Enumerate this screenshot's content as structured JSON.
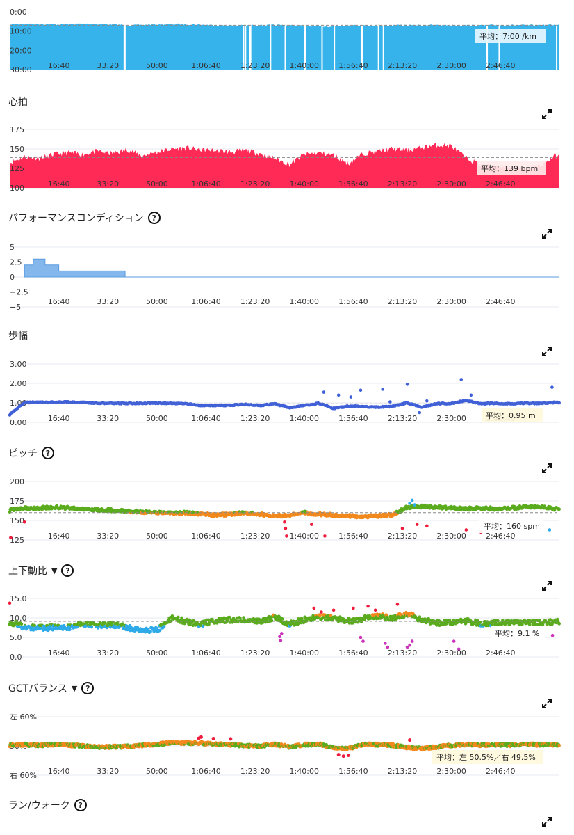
{
  "sections": [
    {
      "id": "pace",
      "title": "",
      "help": false,
      "dropdown": false,
      "expand": false,
      "avg_label": "平均：7:00 /km"
    },
    {
      "id": "hr",
      "title": "心拍",
      "help": false,
      "dropdown": false,
      "expand": true,
      "avg_label": "平均：139 bpm"
    },
    {
      "id": "perf",
      "title": "パフォーマンスコンディション",
      "help": true,
      "dropdown": false,
      "expand": true,
      "avg_label": ""
    },
    {
      "id": "stride",
      "title": "歩幅",
      "help": false,
      "dropdown": false,
      "expand": true,
      "avg_label": "平均：0.95 m"
    },
    {
      "id": "pitch",
      "title": "ピッチ",
      "help": true,
      "dropdown": false,
      "expand": true,
      "avg_label": "平均：160 spm"
    },
    {
      "id": "vratio",
      "title": "上下動比",
      "help": true,
      "dropdown": true,
      "expand": true,
      "avg_label": "平均：9.1 %"
    },
    {
      "id": "gct",
      "title": "GCTバランス",
      "help": true,
      "dropdown": true,
      "expand": true,
      "avg_label": "平均：左 50.5%／右 49.5%"
    },
    {
      "id": "runwalk",
      "title": "ラン/ウォーク",
      "help": true,
      "dropdown": false,
      "expand": true,
      "avg_label": ""
    }
  ],
  "icons": {
    "help": "?",
    "dropdown": "▼",
    "expand": "expand-icon"
  },
  "colors": {
    "pace": "#36b3ea",
    "hr": "#ff2a55",
    "perf": "#84b8ec",
    "perf_line": "#5a9be0",
    "stride": "#4060d8",
    "green": "#5aab1e",
    "orange": "#f2891c",
    "red": "#ee1c3c",
    "blue": "#2eaae8",
    "purple": "#cc33bb",
    "grid": "#e6e8ef",
    "avg_line": "#888888"
  },
  "chart_data": [
    {
      "id": "pace",
      "type": "area",
      "ylim": [
        0,
        30
      ],
      "y_inverted": true,
      "yticks": [
        "0:00",
        "10:00",
        "20:00",
        "30:00"
      ],
      "xticks": [
        "16:40",
        "33:20",
        "50:00",
        "1:06:40",
        "1:23:20",
        "1:40:00",
        "1:56:40",
        "2:13:20",
        "2:30:00",
        "2:46:40"
      ],
      "x_seconds": [
        0,
        500,
        1000,
        1500,
        2000,
        2500,
        3000,
        3500,
        4000,
        4500,
        5000,
        5500,
        6000,
        6500,
        7000,
        7500,
        8000,
        8500,
        9000,
        9500,
        10000,
        10500,
        11000
      ],
      "values": [
        6.5,
        6.3,
        6.6,
        6.2,
        6.5,
        7.0,
        6.6,
        6.4,
        6.8,
        7.2,
        7.0,
        6.9,
        7.3,
        7.6,
        7.1,
        7.2,
        7.0,
        6.9,
        7.0,
        7.1,
        6.9,
        7.0,
        6.8
      ],
      "average": 7.0
    },
    {
      "id": "hr",
      "type": "area",
      "ylim": [
        100,
        175
      ],
      "yticks": [
        "175",
        "150",
        "125",
        "100"
      ],
      "xticks": [
        "16:40",
        "33:20",
        "50:00",
        "1:06:40",
        "1:23:20",
        "1:40:00",
        "1:56:40",
        "2:13:20",
        "2:30:00",
        "2:46:40"
      ],
      "x_seconds": [
        0,
        300,
        600,
        900,
        1200,
        1500,
        1800,
        2100,
        2400,
        2700,
        3000,
        3300,
        3600,
        3900,
        4200,
        4500,
        4800,
        5100,
        5400,
        5700,
        6000,
        6300,
        6600,
        6900,
        7200,
        7500,
        7800,
        8100,
        8400,
        8700,
        9000,
        9300,
        9600,
        9900,
        10200,
        10500,
        10800,
        11100
      ],
      "values": [
        132,
        140,
        138,
        143,
        145,
        143,
        147,
        144,
        149,
        141,
        146,
        150,
        151,
        149,
        148,
        146,
        148,
        144,
        138,
        130,
        143,
        145,
        142,
        131,
        144,
        147,
        150,
        148,
        152,
        155,
        154,
        138,
        130,
        128,
        126,
        124,
        128,
        141
      ],
      "average": 139
    },
    {
      "id": "perf",
      "type": "area",
      "ylim": [
        -5,
        5
      ],
      "yticks": [
        "5",
        "2.5",
        "0",
        "−2.5",
        "−5"
      ],
      "xticks": [
        "16:40",
        "33:20",
        "50:00",
        "1:06:40",
        "1:23:20",
        "1:40:00",
        "1:56:40",
        "2:13:20",
        "2:30:00",
        "2:46:40"
      ],
      "x_seconds": [
        300,
        480,
        720,
        1000,
        1420,
        2350,
        2351,
        11200
      ],
      "values": [
        2,
        3,
        2,
        1,
        1,
        1,
        0,
        0
      ]
    },
    {
      "id": "stride",
      "type": "scatter",
      "ylim": [
        0,
        3
      ],
      "yticks": [
        "3.00",
        "2.00",
        "1.00",
        "0.00"
      ],
      "xticks": [
        "16:40",
        "33:20",
        "50:00",
        "1:06:40",
        "1:23:20",
        "1:40:00",
        "1:56:40",
        "2:13:20",
        "2:30:00",
        "2:46:40"
      ],
      "x_seconds": [
        0,
        300,
        600,
        900,
        1200,
        1500,
        1800,
        2100,
        2400,
        2700,
        3000,
        3300,
        3600,
        3900,
        4200,
        4500,
        4800,
        5100,
        5400,
        5700,
        6000,
        6300,
        6600,
        6900,
        7200,
        7500,
        7800,
        8100,
        8400,
        8700,
        9000,
        9300,
        9600,
        9900,
        10200,
        10500,
        10800,
        11100
      ],
      "values": [
        0.4,
        1.02,
        1.03,
        1.03,
        1.04,
        1.02,
        0.98,
        0.97,
        0.97,
        0.98,
        0.99,
        0.98,
        0.96,
        0.85,
        0.86,
        0.88,
        0.92,
        0.86,
        0.95,
        0.75,
        0.86,
        0.98,
        0.72,
        0.83,
        0.81,
        0.78,
        0.82,
        1.0,
        0.78,
        0.96,
        0.97,
        1.12,
        0.96,
        0.98,
        0.95,
        0.98,
        0.97,
        1.02
      ],
      "average": 0.95
    },
    {
      "id": "pitch",
      "type": "scatter",
      "ylim": [
        125,
        200
      ],
      "yticks": [
        "200",
        "175",
        "150",
        "125"
      ],
      "xticks": [
        "16:40",
        "33:20",
        "50:00",
        "1:06:40",
        "1:23:20",
        "1:40:00",
        "1:56:40",
        "2:13:20",
        "2:30:00",
        "2:46:40"
      ],
      "x_seconds": [
        0,
        300,
        600,
        900,
        1200,
        1500,
        1800,
        2100,
        2400,
        2700,
        3000,
        3300,
        3600,
        3900,
        4200,
        4500,
        4800,
        5100,
        5400,
        5700,
        6000,
        6300,
        6600,
        6900,
        7200,
        7500,
        7800,
        8100,
        8400,
        8700,
        9000,
        9300,
        9600,
        9900,
        10200,
        10500,
        10800,
        11100
      ],
      "values": [
        163,
        166,
        166,
        167,
        166,
        165,
        164,
        163,
        162,
        161,
        160,
        159,
        160,
        158,
        157,
        158,
        160,
        158,
        156,
        157,
        160,
        158,
        157,
        156,
        155,
        156,
        157,
        167,
        168,
        167,
        166,
        165,
        166,
        165,
        166,
        167,
        168,
        165
      ],
      "average": 160
    },
    {
      "id": "vratio",
      "type": "scatter",
      "ylim": [
        0,
        15
      ],
      "yticks": [
        "15.0",
        "10.0",
        "5.0",
        "0.0"
      ],
      "xticks": [
        "16:40",
        "33:20",
        "50:00",
        "1:06:40",
        "1:23:20",
        "1:40:00",
        "1:56:40",
        "2:13:20",
        "2:30:00",
        "2:46:40"
      ],
      "x_seconds": [
        0,
        300,
        600,
        900,
        1200,
        1500,
        1800,
        2100,
        2400,
        2700,
        3000,
        3300,
        3600,
        3900,
        4200,
        4500,
        4800,
        5100,
        5400,
        5700,
        6000,
        6300,
        6600,
        6900,
        7200,
        7500,
        7800,
        8100,
        8400,
        8700,
        9000,
        9300,
        9600,
        9900,
        10200,
        10500,
        10800,
        11100
      ],
      "values": [
        9.0,
        7.6,
        7.5,
        7.5,
        7.6,
        8.5,
        8.0,
        8.3,
        7.5,
        6.8,
        6.8,
        10.0,
        9.0,
        8.5,
        9.2,
        9.5,
        9.5,
        9.0,
        10.2,
        8.5,
        9.5,
        10.2,
        10.0,
        9.2,
        9.7,
        10.5,
        10.0,
        11.0,
        9.5,
        8.7,
        8.8,
        9.2,
        8.6,
        8.7,
        8.7,
        8.9,
        8.7,
        9.0
      ],
      "average": 9.1
    },
    {
      "id": "gct",
      "type": "scatter",
      "ylim": [
        -10,
        10
      ],
      "yticks": [
        "左 60%",
        "50%",
        "右 60%"
      ],
      "xticks": [
        "16:40",
        "33:20",
        "50:00",
        "1:06:40",
        "1:23:20",
        "1:40:00",
        "1:56:40",
        "2:13:20",
        "2:30:00",
        "2:46:40"
      ],
      "x_seconds": [
        0,
        300,
        600,
        900,
        1200,
        1500,
        1800,
        2100,
        2400,
        2700,
        3000,
        3300,
        3600,
        3900,
        4200,
        4500,
        4800,
        5100,
        5400,
        5700,
        6000,
        6300,
        6600,
        6900,
        7200,
        7500,
        7800,
        8100,
        8400,
        8700,
        9000,
        9300,
        9600,
        9900,
        10200,
        10500,
        10800,
        11100
      ],
      "values": [
        0.3,
        0.4,
        0.2,
        0.5,
        0.3,
        0.0,
        -0.4,
        -0.3,
        -0.2,
        0.2,
        0.6,
        1.1,
        1.0,
        0.9,
        0.6,
        0.4,
        0.1,
        -0.1,
        0.5,
        -0.3,
        0.4,
        0.6,
        -0.8,
        -1.0,
        0.5,
        0.4,
        0.2,
        -0.5,
        -0.9,
        -0.4,
        0.2,
        0.5,
        0.3,
        0.4,
        0.3,
        0.5,
        0.4,
        0.3
      ],
      "average_label": "平均：左 50.5%／右 49.5%"
    }
  ]
}
